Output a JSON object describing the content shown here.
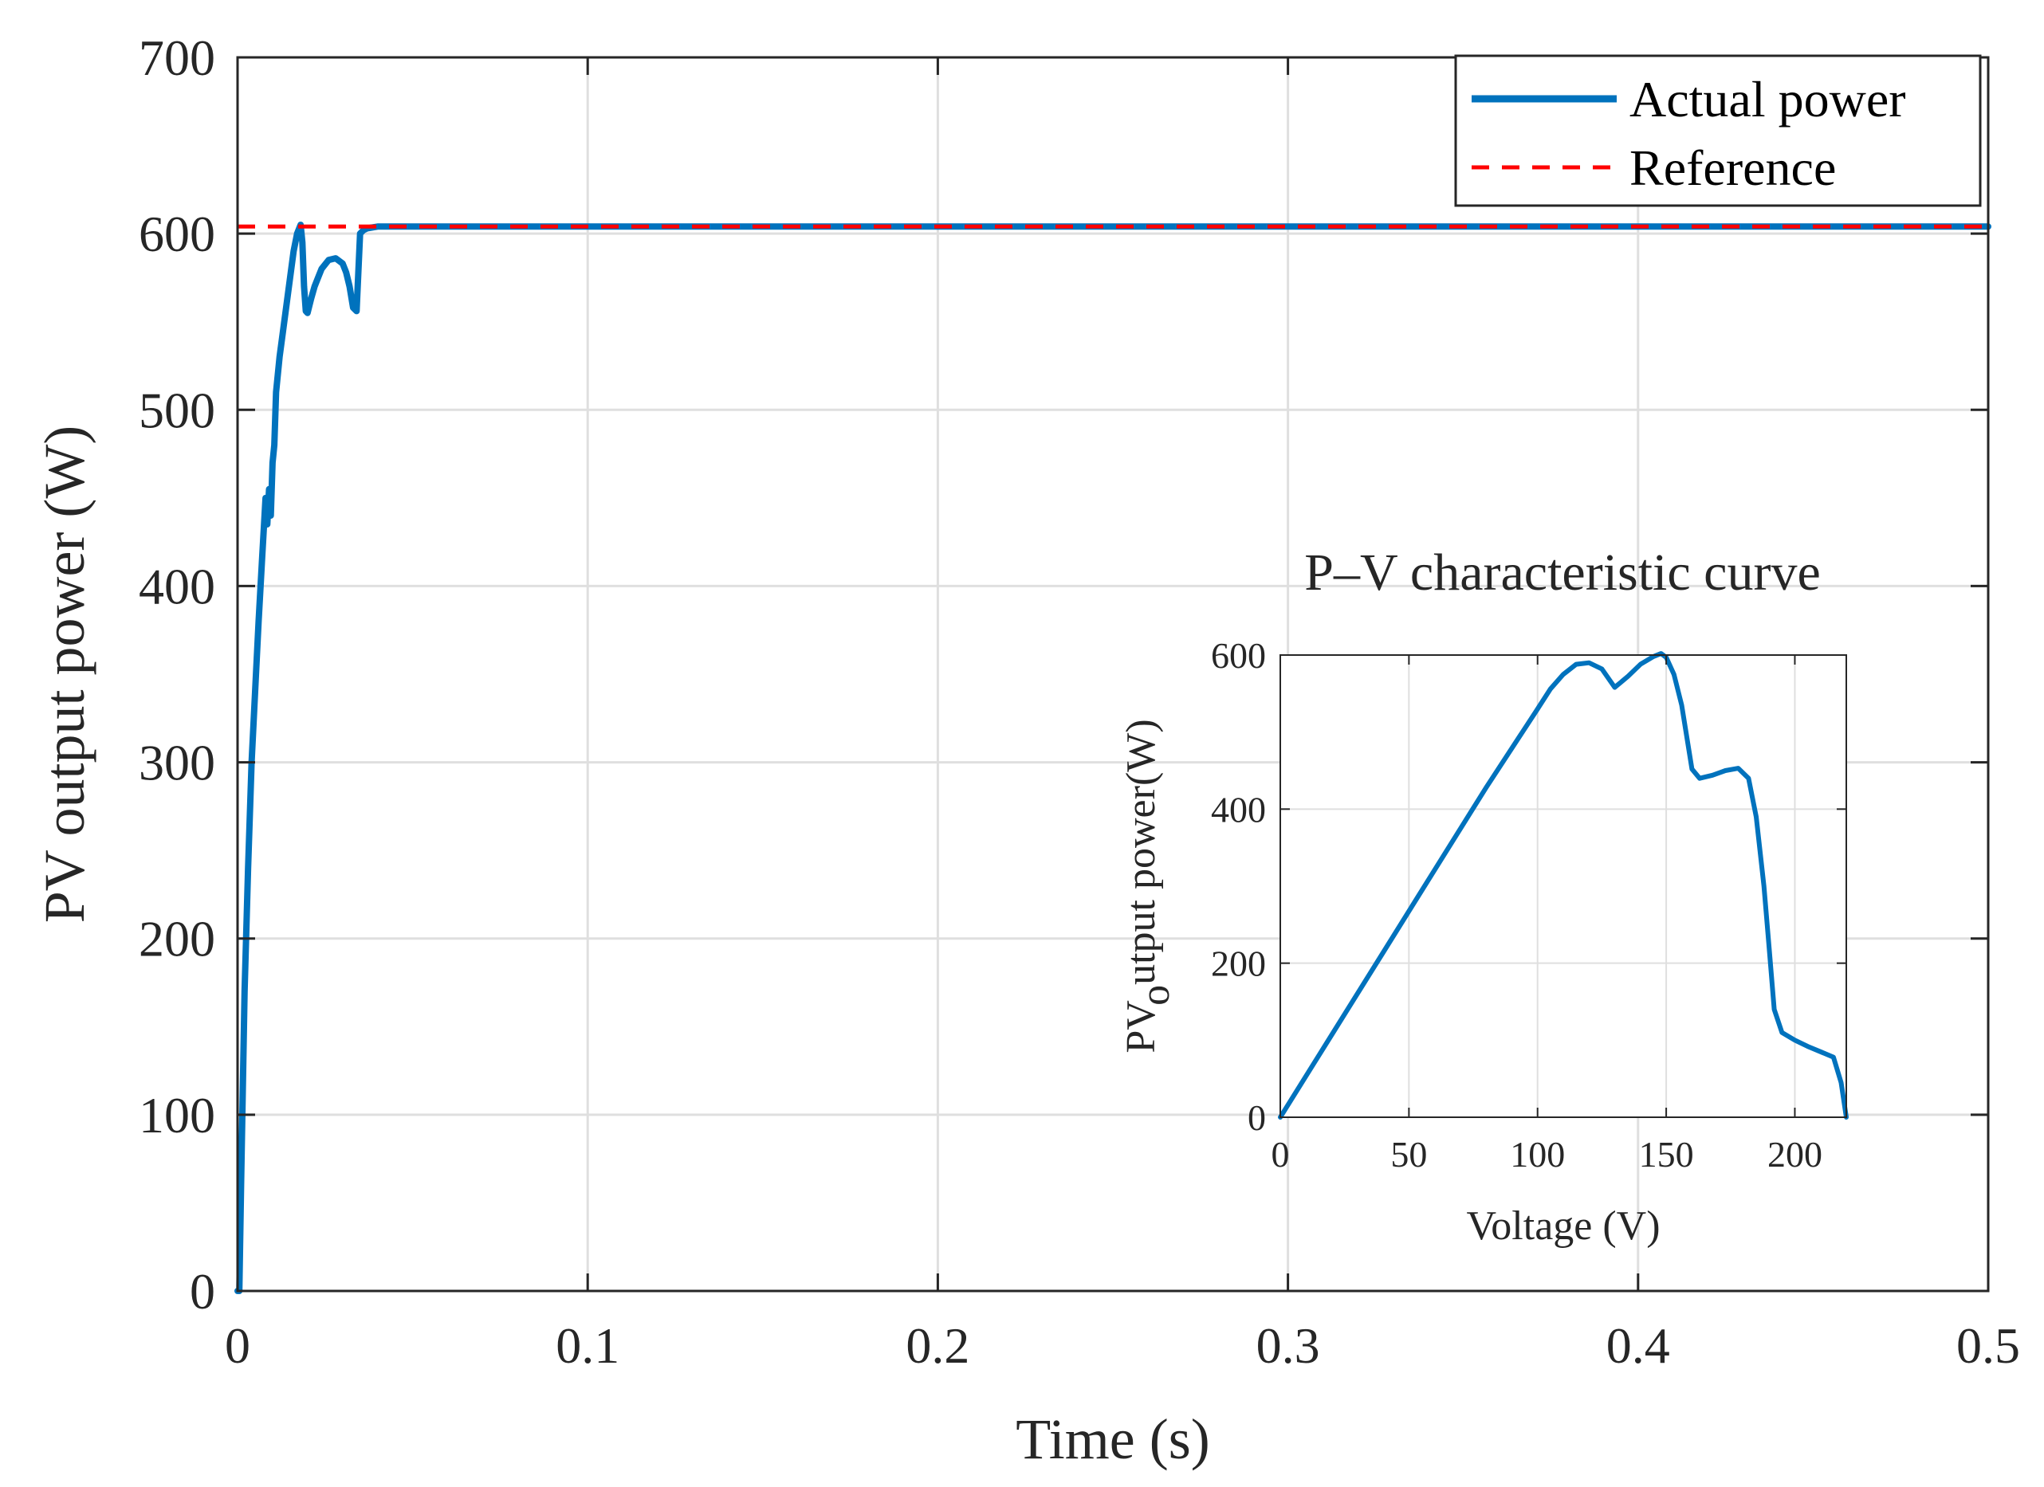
{
  "chart_data": [
    {
      "type": "line",
      "name": "main",
      "title": "",
      "xlabel": "Time (s)",
      "ylabel": "PV output power (W)",
      "xlim": [
        0,
        0.5
      ],
      "ylim": [
        0,
        700
      ],
      "xticks": [
        "0",
        "0.1",
        "0.2",
        "0.3",
        "0.4",
        "0.5"
      ],
      "yticks": [
        "0",
        "100",
        "200",
        "300",
        "400",
        "500",
        "600",
        "700"
      ],
      "grid": true,
      "legend_position": "top-right",
      "series": [
        {
          "name": "Actual power",
          "color": "#0072BD",
          "style": "solid",
          "x": [
            0,
            0.0005,
            0.001,
            0.002,
            0.003,
            0.004,
            0.005,
            0.006,
            0.007,
            0.008,
            0.0085,
            0.009,
            0.0095,
            0.01,
            0.0105,
            0.011,
            0.012,
            0.013,
            0.014,
            0.015,
            0.016,
            0.017,
            0.018,
            0.0185,
            0.019,
            0.0195,
            0.02,
            0.021,
            0.022,
            0.023,
            0.024,
            0.026,
            0.028,
            0.03,
            0.031,
            0.032,
            0.033,
            0.034,
            0.035,
            0.036,
            0.037,
            0.04,
            0.045,
            0.5
          ],
          "values": [
            0,
            0,
            60,
            170,
            240,
            300,
            340,
            380,
            415,
            450,
            435,
            455,
            440,
            470,
            480,
            510,
            530,
            545,
            560,
            575,
            590,
            600,
            605,
            595,
            570,
            556,
            555,
            563,
            570,
            575,
            580,
            585,
            586,
            583,
            578,
            570,
            558,
            556,
            600,
            602,
            603,
            604,
            604,
            604
          ]
        },
        {
          "name": "Reference",
          "color": "#FF0000",
          "style": "dashed",
          "x": [
            0,
            0.5
          ],
          "values": [
            604,
            604
          ]
        }
      ]
    },
    {
      "type": "line",
      "name": "inset",
      "title": "P–V characteristic curve",
      "xlabel": "Voltage (V)",
      "ylabel_main": "PV",
      "ylabel_sub": "o",
      "ylabel_rest": "utput power(W)",
      "xlim": [
        0,
        220
      ],
      "ylim": [
        0,
        600
      ],
      "xticks": [
        "0",
        "50",
        "100",
        "150",
        "200"
      ],
      "yticks": [
        "0",
        "200",
        "400",
        "600"
      ],
      "grid": true,
      "series": [
        {
          "name": "P-V curve",
          "color": "#0072BD",
          "style": "solid",
          "x": [
            0,
            20,
            40,
            60,
            80,
            100,
            105,
            110,
            115,
            120,
            125,
            130,
            135,
            140,
            145,
            148,
            150,
            153,
            156,
            160,
            163,
            168,
            173,
            178,
            182,
            185,
            188,
            190,
            192,
            195,
            200,
            205,
            210,
            215,
            218,
            220
          ],
          "values": [
            0,
            107,
            214,
            321,
            428,
            530,
            556,
            575,
            588,
            590,
            582,
            558,
            572,
            588,
            598,
            602,
            597,
            575,
            535,
            452,
            440,
            444,
            450,
            453,
            440,
            390,
            300,
            220,
            140,
            110,
            100,
            92,
            85,
            78,
            45,
            0
          ]
        }
      ]
    }
  ],
  "legend": {
    "items": [
      {
        "label": "Actual power",
        "color": "#0072BD",
        "style": "solid"
      },
      {
        "label": "Reference",
        "color": "#FF0000",
        "style": "dashed"
      }
    ]
  }
}
